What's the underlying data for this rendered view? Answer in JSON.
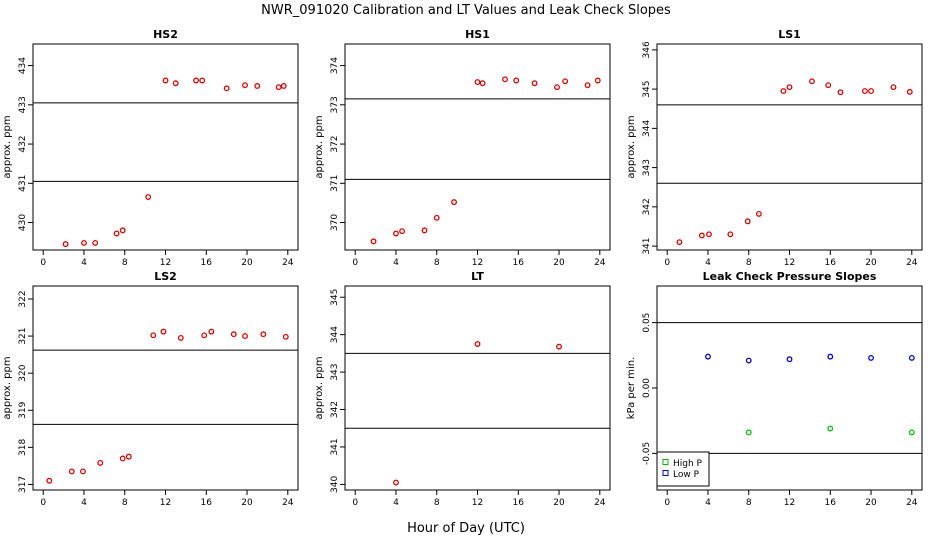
{
  "title": "NWR_091020  Calibration and LT Values and Leak Check Slopes",
  "xlabel": "Hour of Day (UTC)",
  "colors": {
    "primary": "#dd0000",
    "high_p": "#00bb00",
    "low_p": "#0000cc",
    "lines": "#000000"
  },
  "chart_data": [
    {
      "type": "scatter",
      "title": "HS2",
      "ylabel": "approx. ppm",
      "xlim": [
        -1,
        25
      ],
      "ylim": [
        429.3,
        434.55
      ],
      "xticks": [
        0,
        4,
        8,
        12,
        16,
        20,
        24
      ],
      "yticks": [
        430,
        431,
        432,
        433,
        434
      ],
      "hlines": [
        433.05,
        431.05
      ],
      "series": [
        {
          "color_key": "primary",
          "x": [
            2.2,
            4.0,
            5.1,
            7.2,
            7.8,
            10.3,
            12.0,
            13.0,
            15.0,
            15.6,
            18.0,
            19.8,
            21.0,
            23.1,
            23.6
          ],
          "y": [
            429.45,
            429.48,
            429.48,
            429.72,
            429.8,
            430.65,
            433.62,
            433.55,
            433.62,
            433.62,
            433.42,
            433.5,
            433.48,
            433.45,
            433.48
          ]
        }
      ]
    },
    {
      "type": "scatter",
      "title": "HS1",
      "ylabel": "approx. ppm",
      "xlim": [
        -1,
        25
      ],
      "ylim": [
        369.3,
        374.55
      ],
      "xticks": [
        0,
        4,
        8,
        12,
        16,
        20,
        24
      ],
      "yticks": [
        370,
        371,
        372,
        373,
        374
      ],
      "hlines": [
        373.15,
        371.1
      ],
      "series": [
        {
          "color_key": "primary",
          "x": [
            1.8,
            4.0,
            4.6,
            6.8,
            8.0,
            9.7,
            12.0,
            12.5,
            14.7,
            15.8,
            17.6,
            19.8,
            20.6,
            22.8,
            23.8
          ],
          "y": [
            369.52,
            369.72,
            369.78,
            369.8,
            370.12,
            370.52,
            373.58,
            373.55,
            373.65,
            373.62,
            373.55,
            373.45,
            373.6,
            373.5,
            373.62
          ]
        }
      ]
    },
    {
      "type": "scatter",
      "title": "LS1",
      "ylabel": "approx. ppm",
      "xlim": [
        -1,
        25
      ],
      "ylim": [
        340.9,
        346.15
      ],
      "xticks": [
        0,
        4,
        8,
        12,
        16,
        20,
        24
      ],
      "yticks": [
        341,
        342,
        343,
        344,
        345,
        346
      ],
      "hlines": [
        344.6,
        342.6
      ],
      "series": [
        {
          "color_key": "primary",
          "x": [
            1.2,
            3.4,
            4.1,
            6.2,
            7.9,
            9.0,
            11.4,
            12.0,
            14.2,
            15.8,
            17.0,
            19.4,
            20.0,
            22.2,
            23.8
          ],
          "y": [
            341.1,
            341.27,
            341.3,
            341.3,
            341.63,
            341.82,
            344.95,
            345.05,
            345.2,
            345.1,
            344.92,
            344.95,
            344.95,
            345.05,
            344.93
          ]
        }
      ]
    },
    {
      "type": "scatter",
      "title": "LS2",
      "ylabel": "approx. ppm",
      "xlim": [
        -1,
        25
      ],
      "ylim": [
        316.85,
        322.35
      ],
      "xticks": [
        0,
        4,
        8,
        12,
        16,
        20,
        24
      ],
      "yticks": [
        317,
        318,
        319,
        320,
        321,
        322
      ],
      "hlines": [
        320.62,
        318.62
      ],
      "series": [
        {
          "color_key": "primary",
          "x": [
            0.6,
            2.8,
            3.9,
            5.6,
            7.8,
            8.4,
            10.8,
            11.8,
            13.5,
            15.8,
            16.5,
            18.7,
            19.8,
            21.6,
            23.8
          ],
          "y": [
            317.1,
            317.35,
            317.35,
            317.58,
            317.7,
            317.75,
            321.02,
            321.12,
            320.95,
            321.02,
            321.12,
            321.05,
            321.0,
            321.05,
            320.98
          ]
        }
      ]
    },
    {
      "type": "scatter",
      "title": "LT",
      "ylabel": "approx. ppm",
      "xlim": [
        -1,
        25
      ],
      "ylim": [
        339.85,
        345.3
      ],
      "xticks": [
        0,
        4,
        8,
        12,
        16,
        20,
        24
      ],
      "yticks": [
        340,
        341,
        342,
        343,
        344,
        345
      ],
      "hlines": [
        343.5,
        341.5
      ],
      "series": [
        {
          "color_key": "primary",
          "x": [
            4.0,
            12.0,
            20.0
          ],
          "y": [
            340.05,
            343.75,
            343.68
          ]
        }
      ]
    },
    {
      "type": "scatter",
      "title": "Leak Check Pressure Slopes",
      "ylabel": "kPa per min.",
      "xlim": [
        -1,
        25
      ],
      "ylim": [
        -0.078,
        0.078
      ],
      "xticks": [
        0,
        4,
        8,
        12,
        16,
        20,
        24
      ],
      "yticks": [
        -0.05,
        0.0,
        0.05
      ],
      "ytick_labels": [
        "-0.05",
        "0.00",
        "0.05"
      ],
      "hlines": [
        0.05,
        -0.05
      ],
      "legend": {
        "position": "bottom-left",
        "entries": [
          "High P",
          "Low P"
        ]
      },
      "series": [
        {
          "name": "High P",
          "color_key": "high_p",
          "x": [
            8,
            16,
            24
          ],
          "y": [
            -0.034,
            -0.031,
            -0.034
          ]
        },
        {
          "name": "Low P",
          "color_key": "low_p",
          "x": [
            4,
            8,
            12,
            16,
            20,
            24
          ],
          "y": [
            0.024,
            0.021,
            0.022,
            0.024,
            0.023,
            0.023
          ]
        }
      ]
    }
  ]
}
